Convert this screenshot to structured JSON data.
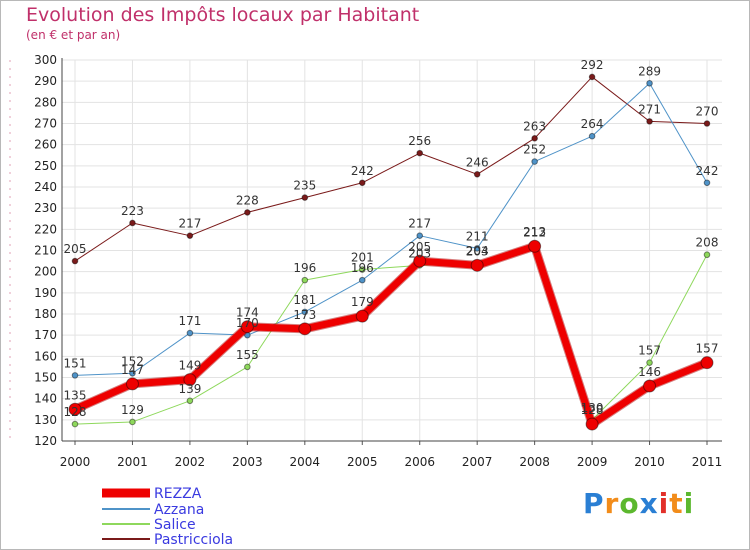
{
  "title": "Evolution des Impôts locaux par Habitant",
  "subtitle": "(en € et par an)",
  "logo": {
    "text": "Proxiti",
    "letters": [
      "P",
      "r",
      "o",
      "x",
      "i",
      "t",
      "i"
    ],
    "colors": [
      "#2a7fd4",
      "#f28c1a",
      "#5cb82e",
      "#2a7fd4",
      "#e2302a",
      "#f28c1a",
      "#5cb82e"
    ]
  },
  "chart_data": {
    "type": "line",
    "title": "Evolution des Impôts locaux par Habitant",
    "subtitle": "(en € et par an)",
    "xlabel": "",
    "ylabel": "",
    "ylim": [
      120,
      300
    ],
    "yticks": [
      "120",
      "130",
      "140",
      "150",
      "160",
      "170",
      "180",
      "190",
      "200",
      "210",
      "220",
      "230",
      "240",
      "250",
      "260",
      "270",
      "280",
      "290",
      "300"
    ],
    "categories": [
      "2000",
      "2001",
      "2002",
      "2003",
      "2004",
      "2005",
      "2006",
      "2007",
      "2008",
      "2009",
      "2010",
      "2011"
    ],
    "legend_position": "bottom-left",
    "series": [
      {
        "name": "Pastricciola",
        "color": "#7a1a1a",
        "width": 1,
        "marker": 2.8,
        "values": [
          205,
          223,
          217,
          228,
          235,
          242,
          256,
          246,
          263,
          292,
          271,
          270
        ],
        "labels": [
          "205",
          "223",
          "217",
          "228",
          "235",
          "242",
          "256",
          "246",
          "263",
          "292",
          "271",
          "270"
        ]
      },
      {
        "name": "Azzana",
        "color": "#4f93c8",
        "width": 1,
        "marker": 2.8,
        "values": [
          151,
          152,
          171,
          170,
          181,
          196,
          217,
          211,
          252,
          264,
          289,
          242
        ],
        "labels": [
          "151",
          "152",
          "171",
          "170",
          "181",
          "196",
          "217",
          "211",
          "252",
          "264",
          "289",
          "242"
        ]
      },
      {
        "name": "Salice",
        "color": "#8ed85c",
        "width": 1,
        "marker": 2.8,
        "values": [
          128,
          129,
          139,
          155,
          196,
          201,
          203,
          204,
          213,
          130,
          157,
          208
        ],
        "labels": [
          "128",
          "129",
          "139",
          "155",
          "196",
          "201",
          "203",
          "204",
          "213",
          "130",
          "157",
          "208"
        ]
      },
      {
        "name": "REZZA",
        "color": "#ee0000",
        "width": 7,
        "marker": 6,
        "values": [
          135,
          147,
          149,
          174,
          173,
          179,
          205,
          203,
          212,
          128,
          146,
          157
        ],
        "labels": [
          "135",
          "147",
          "149",
          "174",
          "173",
          "179",
          "205",
          "203",
          "212",
          "128",
          "146",
          "157"
        ]
      }
    ],
    "legend": [
      "REZZA",
      "Azzana",
      "Salice",
      "Pastricciola"
    ]
  }
}
